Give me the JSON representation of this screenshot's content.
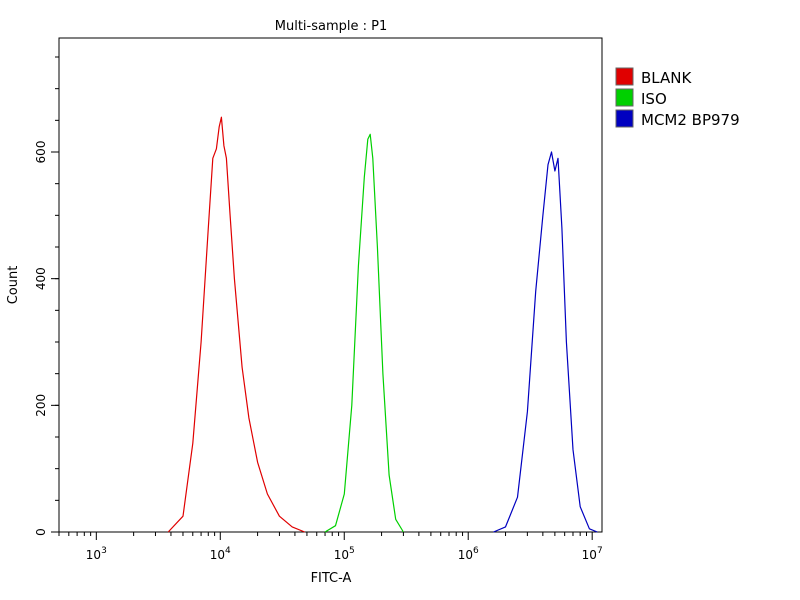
{
  "chart_data": {
    "type": "line",
    "title": "Multi-sample : P1",
    "xlabel": "FITC-A",
    "ylabel": "Count",
    "x_scale": "log",
    "xlim": [
      500,
      12000000
    ],
    "ylim": [
      0,
      780
    ],
    "x_major_ticks": [
      {
        "value": 1000,
        "base": "10",
        "exp": "3"
      },
      {
        "value": 10000,
        "base": "10",
        "exp": "4"
      },
      {
        "value": 100000,
        "base": "10",
        "exp": "5"
      },
      {
        "value": 1000000,
        "base": "10",
        "exp": "6"
      },
      {
        "value": 10000000,
        "base": "10",
        "exp": "7"
      }
    ],
    "y_ticks": [
      0,
      200,
      400,
      600
    ],
    "legend_position": "right",
    "grid": false,
    "series": [
      {
        "name": "BLANK",
        "color": "#e00000",
        "x": [
          3800,
          5000,
          6000,
          7000,
          8000,
          8700,
          9300,
          9800,
          10200,
          10700,
          11200,
          12000,
          13000,
          15000,
          17000,
          20000,
          24000,
          30000,
          38000,
          48000
        ],
        "y": [
          0,
          25,
          140,
          300,
          480,
          590,
          605,
          640,
          655,
          610,
          590,
          500,
          400,
          260,
          180,
          110,
          60,
          25,
          8,
          0
        ]
      },
      {
        "name": "ISO",
        "color": "#00d000",
        "x": [
          70000,
          85000,
          100000,
          115000,
          130000,
          145000,
          155000,
          162000,
          170000,
          185000,
          205000,
          230000,
          260000,
          300000
        ],
        "y": [
          0,
          10,
          60,
          200,
          420,
          560,
          620,
          628,
          590,
          450,
          250,
          90,
          20,
          0
        ]
      },
      {
        "name": "MCM2 BP979",
        "color": "#0000c0",
        "x": [
          1600000,
          2000000,
          2500000,
          3000000,
          3500000,
          4000000,
          4400000,
          4700000,
          5000000,
          5300000,
          5700000,
          6200000,
          7000000,
          8000000,
          9500000,
          11000000
        ],
        "y": [
          0,
          8,
          55,
          190,
          380,
          500,
          580,
          600,
          570,
          590,
          480,
          300,
          130,
          40,
          5,
          0
        ]
      }
    ]
  }
}
